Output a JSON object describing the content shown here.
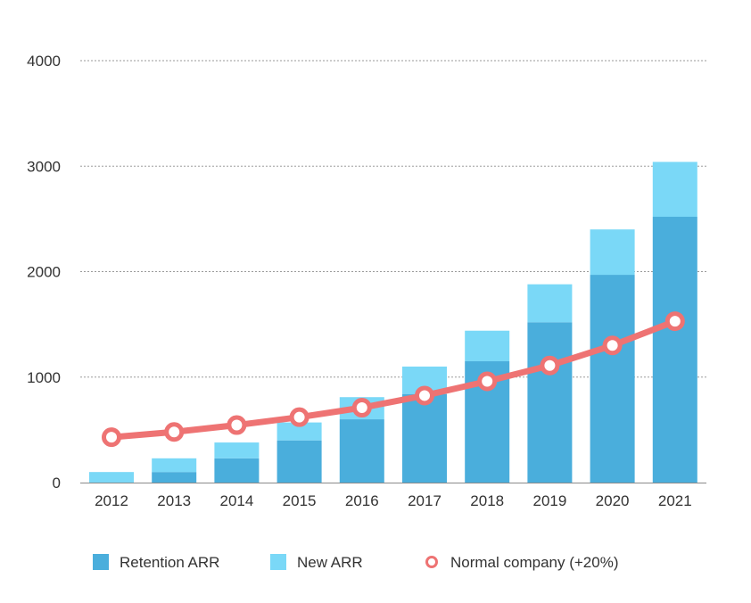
{
  "chart_data": {
    "type": "bar",
    "stacked": true,
    "categories": [
      "2012",
      "2013",
      "2014",
      "2015",
      "2016",
      "2017",
      "2018",
      "2019",
      "2020",
      "2021"
    ],
    "series": [
      {
        "name": "Retention ARR",
        "type": "bar",
        "color": "#4aaedc",
        "values": [
          0,
          100,
          230,
          400,
          600,
          840,
          1150,
          1520,
          1970,
          2520
        ]
      },
      {
        "name": "New ARR",
        "type": "bar",
        "color": "#7ad8f7",
        "values": [
          100,
          130,
          150,
          170,
          210,
          260,
          290,
          360,
          430,
          520
        ]
      },
      {
        "name": "Normal company (+20%)",
        "type": "line",
        "color": "#ee7373",
        "values": [
          430,
          480,
          545,
          620,
          710,
          825,
          960,
          1110,
          1300,
          1530
        ]
      }
    ],
    "yticks": [
      "0",
      "1000",
      "2000",
      "3000",
      "4000"
    ],
    "ylim": [
      0,
      4000
    ],
    "grid": true,
    "legend_position": "bottom",
    "title": "",
    "xlabel": "",
    "ylabel": ""
  }
}
